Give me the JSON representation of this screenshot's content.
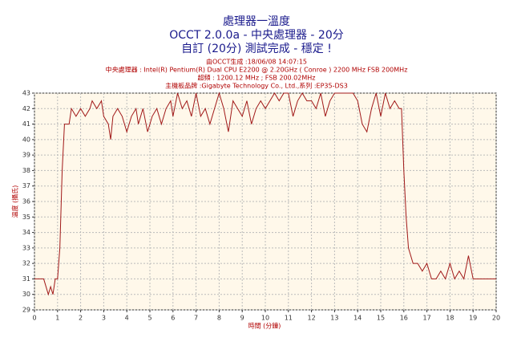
{
  "chart_data": {
    "type": "line",
    "title": "處理器一溫度",
    "subtitles": [
      "OCCT 2.0.0a - 中央處理器 - 20分",
      "自訂 (20分) 測試完成 - 穩定 !"
    ],
    "annotations": [
      "由OCCT生成 :18/06/08 14:07:15",
      "中央處理器 : Intel(R) Pentium(R) Dual CPU E2200 @ 2.20GHz ( Conroe ) 2200 MHz FSB 200MHz",
      "超頻 : 1200.12 MHz ; FSB 200.02MHz",
      "主機板品牌 :Gigabyte Technology Co., Ltd.,系列 :EP35-DS3"
    ],
    "x_label": "時間 (分鐘)",
    "y_label": "溫度 (攝氏)",
    "x": [
      0,
      0.4,
      0.5,
      0.6,
      0.7,
      0.8,
      0.9,
      1.0,
      1.1,
      1.2,
      1.3,
      1.5,
      1.6,
      1.8,
      2.0,
      2.2,
      2.4,
      2.5,
      2.7,
      2.9,
      3.0,
      3.2,
      3.3,
      3.4,
      3.6,
      3.8,
      4.0,
      4.2,
      4.4,
      4.5,
      4.7,
      4.9,
      5.1,
      5.3,
      5.5,
      5.7,
      5.9,
      6.0,
      6.2,
      6.4,
      6.6,
      6.8,
      7.0,
      7.2,
      7.4,
      7.6,
      7.8,
      8.0,
      8.2,
      8.4,
      8.6,
      8.8,
      9.0,
      9.2,
      9.4,
      9.6,
      9.8,
      10.0,
      10.2,
      10.4,
      10.6,
      10.8,
      11.0,
      11.2,
      11.4,
      11.6,
      11.8,
      12.0,
      12.2,
      12.4,
      12.6,
      12.8,
      13.0,
      13.2,
      13.4,
      13.6,
      13.8,
      14.0,
      14.2,
      14.4,
      14.6,
      14.8,
      15.0,
      15.2,
      15.4,
      15.6,
      15.8,
      15.9,
      16.0,
      16.1,
      16.2,
      16.4,
      16.6,
      16.8,
      17.0,
      17.2,
      17.4,
      17.6,
      17.8,
      18.0,
      18.2,
      18.4,
      18.6,
      18.8,
      19.0,
      19.2,
      20.0
    ],
    "series": [
      {
        "name": "溫度",
        "color": "#a01818",
        "values": [
          31,
          31,
          30.5,
          30,
          30.5,
          30,
          31,
          31,
          33,
          38,
          41,
          41,
          42,
          41.5,
          42,
          41.5,
          42,
          42.5,
          42,
          42.5,
          41.5,
          41,
          40,
          41.5,
          42,
          41.5,
          40.5,
          41.5,
          42,
          41,
          42,
          40.5,
          41.5,
          42,
          41,
          42,
          42.5,
          41.5,
          43,
          42,
          42.5,
          41.5,
          43,
          41.5,
          42,
          41,
          42,
          43,
          42,
          40.5,
          42.5,
          42,
          41.5,
          42.5,
          41,
          42,
          42.5,
          42,
          42.5,
          43,
          42.5,
          43,
          43,
          41.5,
          42.5,
          43,
          42.5,
          42.5,
          42,
          43,
          41.5,
          42.5,
          43,
          43,
          43,
          43,
          43,
          42.5,
          41,
          40.5,
          42,
          43,
          41.5,
          43,
          42,
          42.5,
          42,
          42,
          38,
          35,
          33,
          32,
          32,
          31.5,
          32,
          31,
          31,
          31.5,
          31,
          32,
          31,
          31.5,
          31,
          32.5,
          31,
          31,
          31
        ]
      }
    ],
    "xlim": [
      0,
      20
    ],
    "xticks": [
      0,
      1,
      2,
      3,
      4,
      5,
      6,
      7,
      8,
      9,
      10,
      11,
      12,
      13,
      14,
      15,
      16,
      17,
      18,
      19,
      20
    ],
    "ylim": [
      29,
      43
    ],
    "yticks": [
      29,
      30,
      31,
      32,
      33,
      34,
      35,
      36,
      37,
      38,
      39,
      40,
      41,
      42,
      43
    ],
    "grid": true
  }
}
